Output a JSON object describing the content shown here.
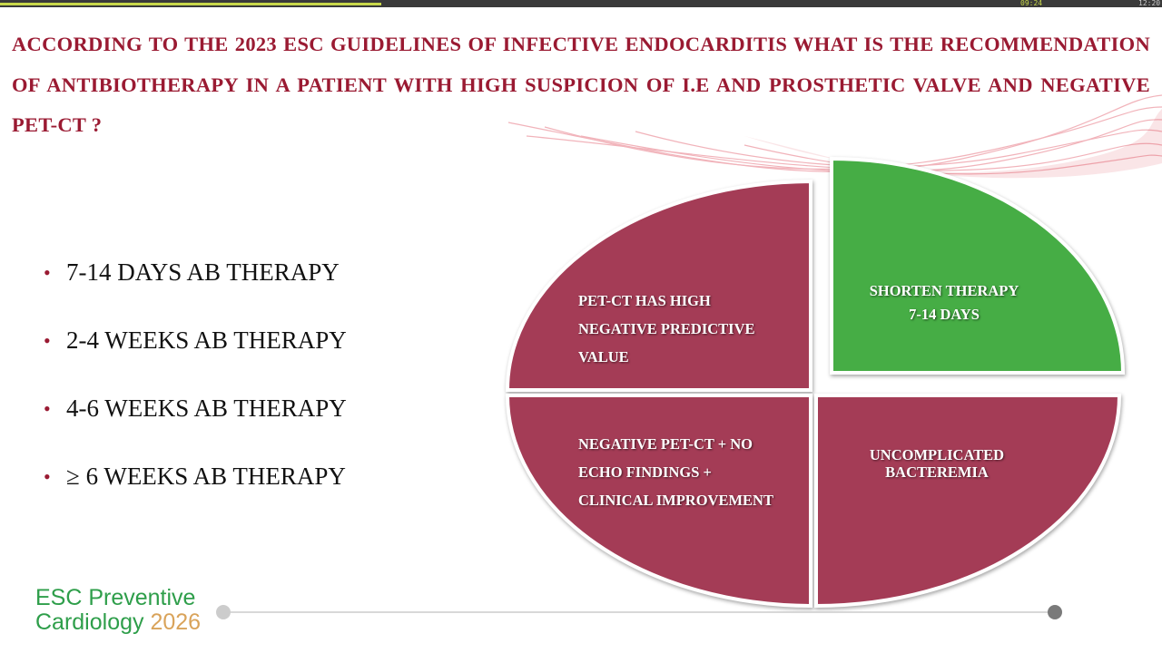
{
  "player": {
    "elapsed": "09:24",
    "total": "12:20"
  },
  "question": "ACCORDING TO THE 2023 ESC GUIDELINES OF INFECTIVE ENDOCARDITIS WHAT IS THE RECOMMENDATION OF ANTIBIOTHERAPY IN A PATIENT WITH HIGH SUSPICION OF I.E AND PROSTHETIC VALVE AND NEGATIVE PET-CT ?",
  "options": [
    "7-14 DAYS AB THERAPY",
    "2-4 WEEKS AB THERAPY",
    "4-6 WEEKS AB THERAPY",
    "≥ 6 WEEKS AB THERAPY"
  ],
  "quadrants": {
    "top_left": [
      "PET-CT HAS HIGH",
      "NEGATIVE PREDICTIVE",
      "VALUE"
    ],
    "top_right": [
      "SHORTEN THERAPY",
      "7-14 DAYS"
    ],
    "bottom_left": [
      "NEGATIVE PET-CT + NO",
      "ECHO FINDINGS +",
      "CLINICAL IMPROVEMENT"
    ],
    "bottom_right": [
      "UNCOMPLICATED",
      "BACTEREMIA"
    ]
  },
  "logo": {
    "line1": "ESC Preventive",
    "line2": "Cardiology",
    "year": "2026"
  }
}
